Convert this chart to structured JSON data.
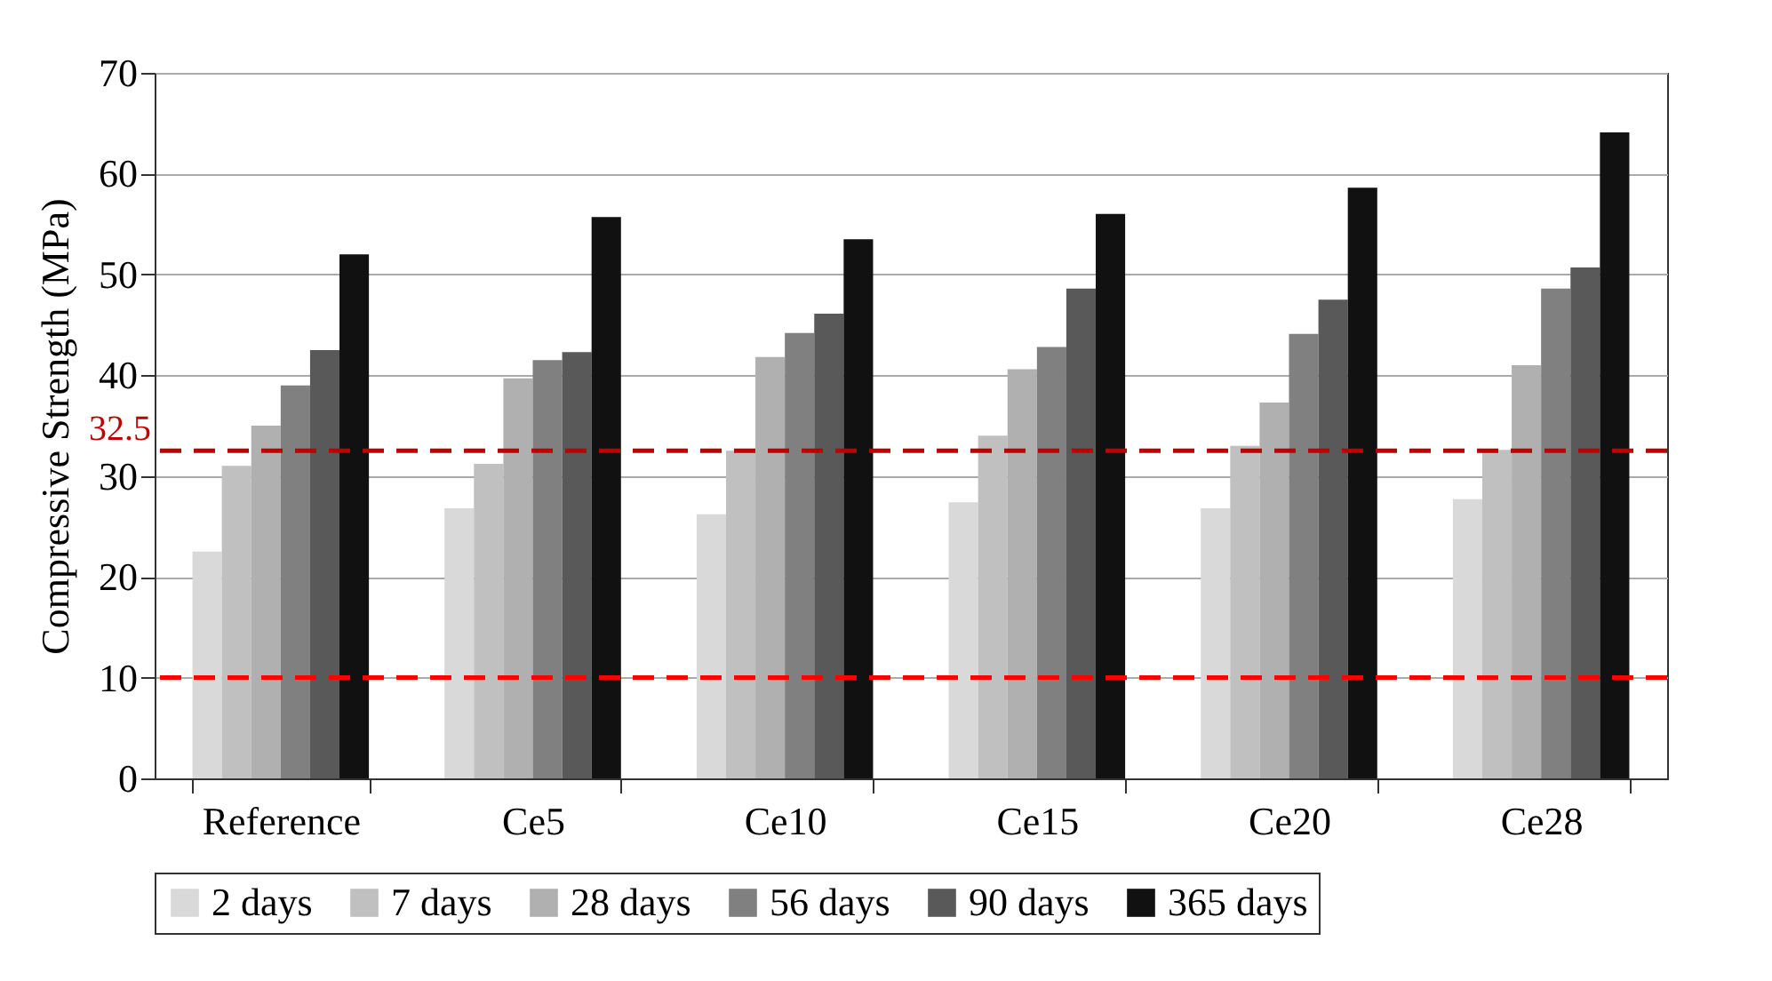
{
  "chart_data": {
    "type": "bar",
    "ylabel": "Compressive Strength (MPa)",
    "categories": [
      "Reference",
      "Ce5",
      "Ce10",
      "Ce15",
      "Ce20",
      "Ce28"
    ],
    "series": [
      {
        "name": "2 days",
        "color": "#d9d9d9",
        "values": [
          22.5,
          26.8,
          26.2,
          27.4,
          26.8,
          27.7
        ]
      },
      {
        "name": "7 days",
        "color": "#c0c0c0",
        "values": [
          31,
          31.2,
          32.5,
          34,
          33,
          32.6
        ]
      },
      {
        "name": "28 days",
        "color": "#b0b0b0",
        "values": [
          35,
          39.7,
          41.8,
          40.6,
          37.3,
          41
        ]
      },
      {
        "name": "56 days",
        "color": "#808080",
        "values": [
          39,
          41.5,
          44.2,
          42.8,
          44.1,
          48.6
        ]
      },
      {
        "name": "90 days",
        "color": "#595959",
        "values": [
          42.5,
          42.3,
          46.1,
          48.6,
          47.5,
          50.7
        ]
      },
      {
        "name": "365 days",
        "color": "#111111",
        "values": [
          52,
          55.7,
          53.5,
          56,
          58.6,
          64.1
        ]
      }
    ],
    "ylim": [
      0,
      70
    ],
    "yticks": [
      0,
      10,
      20,
      30,
      40,
      50,
      60,
      70
    ],
    "grid": "y",
    "legend": "bottom",
    "ref_lines": [
      {
        "axis": "y",
        "value": 32.5,
        "label": "32.5",
        "color": "#c00000",
        "line_style": "dashed"
      },
      {
        "axis": "y",
        "value": 10,
        "label": null,
        "color": "#ff0000",
        "line_style": "dashed"
      }
    ]
  }
}
